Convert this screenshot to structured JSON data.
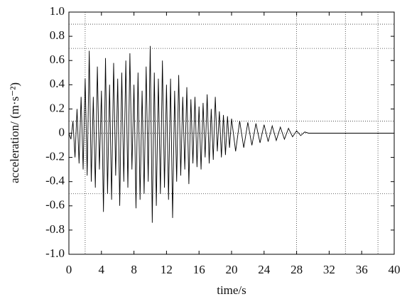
{
  "chart_data": {
    "type": "line",
    "xlabel": "time/s",
    "ylabel": "acceleration/ (m·s⁻²)",
    "color": "#000000",
    "xlim": [
      0,
      40
    ],
    "ylim": [
      -1,
      1
    ],
    "xticks": [
      0,
      4,
      8,
      12,
      16,
      20,
      24,
      28,
      32,
      36,
      40
    ],
    "yticks": [
      {
        "value": 1,
        "label": "1.0"
      },
      0.8,
      0.6,
      0.4,
      0.2,
      0,
      -0.2,
      -0.4,
      -0.6,
      -0.8,
      {
        "value": -1,
        "label": "-1.0"
      }
    ],
    "xgrid": [
      2,
      28,
      34,
      38
    ],
    "ygrid": [
      0.9,
      0.7,
      0.1,
      0,
      -0.5
    ],
    "x": [
      0,
      0.25,
      0.5,
      0.75,
      1,
      1.25,
      1.5,
      1.75,
      2,
      2.25,
      2.5,
      2.75,
      3,
      3.25,
      3.5,
      3.75,
      4,
      4.25,
      4.5,
      4.75,
      5,
      5.25,
      5.5,
      5.75,
      6,
      6.25,
      6.5,
      6.75,
      7,
      7.25,
      7.5,
      7.75,
      8,
      8.25,
      8.5,
      8.75,
      9,
      9.25,
      9.5,
      9.75,
      10,
      10.25,
      10.5,
      10.75,
      11,
      11.25,
      11.5,
      11.75,
      12,
      12.25,
      12.5,
      12.75,
      13,
      13.25,
      13.5,
      13.75,
      14,
      14.25,
      14.5,
      14.75,
      15,
      15.25,
      15.5,
      15.75,
      16,
      16.25,
      16.5,
      16.75,
      17,
      17.25,
      17.5,
      17.75,
      18,
      18.25,
      18.5,
      18.75,
      19,
      19.25,
      19.5,
      19.75,
      20,
      20.5,
      21,
      21.5,
      22,
      22.5,
      23,
      23.5,
      24,
      24.5,
      25,
      25.5,
      26,
      26.5,
      27,
      27.5,
      28,
      28.5,
      29,
      29.5,
      30,
      40
    ],
    "values": [
      0,
      -0.05,
      0.1,
      -0.2,
      0.2,
      -0.25,
      0.3,
      -0.3,
      0.45,
      -0.35,
      0.68,
      -0.4,
      0.3,
      -0.45,
      0.55,
      -0.3,
      0.35,
      -0.65,
      0.62,
      -0.5,
      0.4,
      -0.55,
      0.58,
      -0.35,
      0.45,
      -0.6,
      0.5,
      -0.4,
      0.6,
      -0.45,
      0.66,
      -0.3,
      0.4,
      -0.62,
      0.5,
      -0.55,
      0.35,
      -0.5,
      0.55,
      -0.4,
      0.72,
      -0.74,
      0.5,
      -0.6,
      0.45,
      -0.5,
      0.6,
      -0.45,
      0.4,
      -0.55,
      0.45,
      -0.7,
      0.35,
      -0.4,
      0.48,
      -0.35,
      0.3,
      -0.3,
      0.38,
      -0.42,
      0.28,
      -0.25,
      0.3,
      -0.28,
      0.22,
      -0.3,
      0.25,
      -0.2,
      0.32,
      -0.25,
      0.2,
      -0.22,
      0.3,
      -0.15,
      0.18,
      -0.2,
      0.15,
      -0.18,
      0.14,
      -0.12,
      0.12,
      -0.15,
      0.1,
      -0.12,
      0.09,
      -0.1,
      0.08,
      -0.08,
      0.07,
      -0.07,
      0.06,
      -0.06,
      0.05,
      -0.05,
      0.04,
      -0.03,
      0.02,
      -0.02,
      0.01,
      0,
      0,
      0
    ]
  }
}
